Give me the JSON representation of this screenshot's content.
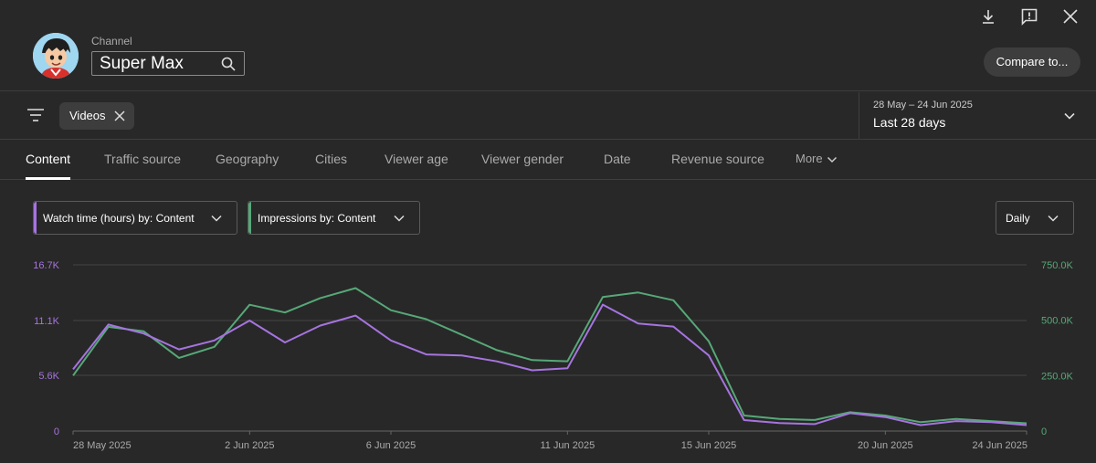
{
  "header": {
    "channel_caption": "Channel",
    "channel_name": "Super Max",
    "compare_label": "Compare to..."
  },
  "filters": {
    "chip_label": "Videos",
    "date_range": "28 May – 24 Jun 2025",
    "date_period": "Last 28 days"
  },
  "tabs": [
    {
      "label": "Content",
      "active": true
    },
    {
      "label": "Traffic source"
    },
    {
      "label": "Geography"
    },
    {
      "label": "Cities"
    },
    {
      "label": "Viewer age"
    },
    {
      "label": "Viewer gender"
    },
    {
      "label": "Date"
    },
    {
      "label": "Revenue source"
    },
    {
      "label": "More"
    }
  ],
  "metrics": {
    "primary": "Watch time (hours) by: Content",
    "secondary": "Impressions by: Content",
    "granularity": "Daily"
  },
  "colors": {
    "watch_time": "#a674e0",
    "impressions": "#57a878",
    "grid": "#444444"
  },
  "chart_data": {
    "type": "line",
    "x": [
      "28 May 2025",
      "29 May",
      "30 May",
      "31 May",
      "1 Jun",
      "2 Jun 2025",
      "3 Jun",
      "4 Jun",
      "5 Jun",
      "6 Jun 2025",
      "7 Jun",
      "8 Jun",
      "9 Jun",
      "10 Jun",
      "11 Jun 2025",
      "12 Jun",
      "13 Jun",
      "14 Jun",
      "15 Jun 2025",
      "16 Jun",
      "17 Jun",
      "18 Jun",
      "19 Jun",
      "20 Jun 2025",
      "21 Jun",
      "22 Jun",
      "23 Jun",
      "24 Jun 2025"
    ],
    "x_tick_labels": [
      "28 May 2025",
      "2 Jun 2025",
      "6 Jun 2025",
      "11 Jun 2025",
      "15 Jun 2025",
      "20 Jun 2025",
      "24 Jun 2025"
    ],
    "x_tick_index": [
      0,
      5,
      9,
      14,
      18,
      23,
      27
    ],
    "series": [
      {
        "name": "Watch time (hours)",
        "axis": "left",
        "values": [
          6200,
          10700,
          9800,
          8200,
          9100,
          11100,
          8900,
          10600,
          11600,
          9100,
          7700,
          7600,
          7000,
          6100,
          6300,
          12700,
          10800,
          10500,
          7600,
          1100,
          800,
          700,
          1800,
          1400,
          600,
          1000,
          900,
          600
        ]
      },
      {
        "name": "Impressions",
        "axis": "right",
        "values": [
          250000,
          470000,
          450000,
          330000,
          380000,
          570000,
          535000,
          600000,
          645000,
          545000,
          505000,
          435000,
          365000,
          320000,
          315000,
          605000,
          625000,
          590000,
          405000,
          70000,
          55000,
          50000,
          85000,
          70000,
          40000,
          55000,
          45000,
          35000
        ]
      }
    ],
    "y_left": {
      "ticks": [
        0,
        5600,
        11100,
        16700
      ],
      "tick_labels": [
        "0",
        "5.6K",
        "11.1K",
        "16.7K"
      ],
      "range": [
        0,
        16700
      ]
    },
    "y_right": {
      "ticks": [
        0,
        250000,
        500000,
        750000
      ],
      "tick_labels": [
        "0",
        "250.0K",
        "500.0K",
        "750.0K"
      ],
      "range": [
        0,
        750000
      ]
    },
    "grid": true
  }
}
